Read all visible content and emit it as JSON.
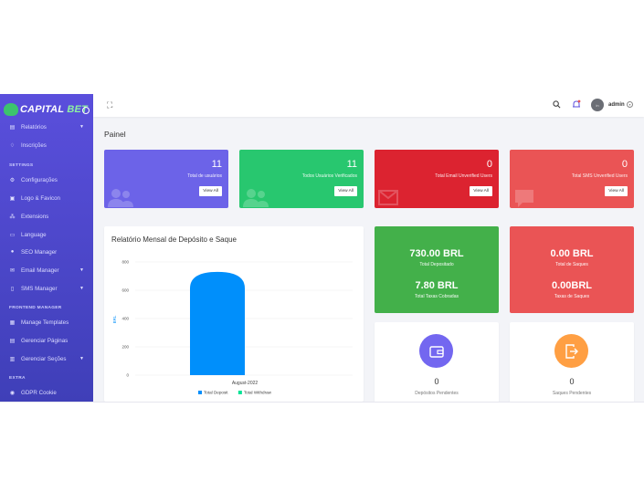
{
  "brand": {
    "name_part1": "CAPITAL",
    "name_part2": "BET"
  },
  "sidebar": {
    "items": [
      {
        "label": "Relatórios",
        "icon": "chart-icon",
        "caret": true
      },
      {
        "label": "Inscrições",
        "icon": "bell-small-icon",
        "caret": false
      },
      {
        "label": "Configurações",
        "icon": "gear-icon",
        "caret": false
      },
      {
        "label": "Logo & Favicon",
        "icon": "image-icon",
        "caret": false
      },
      {
        "label": "Extensions",
        "icon": "puzzle-icon",
        "caret": false
      },
      {
        "label": "Language",
        "icon": "language-icon",
        "caret": false
      },
      {
        "label": "SEO Manager",
        "icon": "globe-icon",
        "caret": false
      },
      {
        "label": "Email Manager",
        "icon": "envelope-icon",
        "caret": true
      },
      {
        "label": "SMS Manager",
        "icon": "mobile-icon",
        "caret": true
      },
      {
        "label": "Manage Templates",
        "icon": "template-icon",
        "caret": false
      },
      {
        "label": "Gerenciar Páginas",
        "icon": "pages-icon",
        "caret": false
      },
      {
        "label": "Gerenciar Seções",
        "icon": "sections-icon",
        "caret": true
      },
      {
        "label": "GDPR Cookie",
        "icon": "cookie-icon",
        "caret": false
      }
    ],
    "sections": {
      "settings": "SETTINGS",
      "frontend": "FRONTEND MANAGER",
      "extra": "EXTRA"
    }
  },
  "topbar": {
    "admin_name": "admin",
    "avatar_text": "in"
  },
  "page": {
    "title": "Painel"
  },
  "stats": [
    {
      "value": "11",
      "label": "Total de usuários",
      "button": "View All",
      "color": "#6c63e8"
    },
    {
      "value": "11",
      "label": "Todos Usuários Verificados",
      "button": "View All",
      "color": "#28c76f"
    },
    {
      "value": "0",
      "label": "Total Email Unverified Users",
      "button": "View All",
      "color": "#dc2330"
    },
    {
      "value": "0",
      "label": "Total SMS Unverified Users",
      "button": "View All",
      "color": "#ea5455"
    }
  ],
  "money": {
    "deposits": {
      "amount": "730.00 BRL",
      "amount_label": "Total Depositado",
      "charge": "7.80 BRL",
      "charge_label": "Total Taxas Cobradas",
      "color": "#43b04a"
    },
    "withdrawals": {
      "amount": "0.00 BRL",
      "amount_label": "Total de Saques",
      "charge": "0.00BRL",
      "charge_label": "Taxas de Saques",
      "color": "#ea5455"
    }
  },
  "pending": {
    "deposits": {
      "count": "0",
      "label": "Depósitos Pendentes",
      "color": "#7367f0"
    },
    "withdrawals": {
      "count": "0",
      "label": "Saques Pendentes",
      "color": "#ff9f43"
    }
  },
  "chart_data": {
    "type": "bar",
    "title": "Relatório Mensal de Depósito e Saque",
    "categories": [
      "August-2022"
    ],
    "series": [
      {
        "name": "Total Deposit",
        "values": [
          730
        ],
        "color": "#008ffb"
      },
      {
        "name": "Total Withdraw",
        "values": [
          0
        ],
        "color": "#00e396"
      }
    ],
    "ylabel": "BRL",
    "ylim": [
      0,
      800
    ],
    "yticks": [
      "800",
      "600",
      "400",
      "200",
      "0"
    ],
    "legend": "bottom"
  }
}
